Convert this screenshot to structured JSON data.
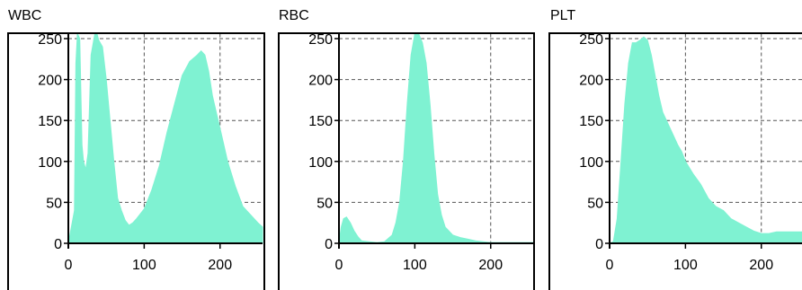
{
  "chart_data": [
    {
      "type": "area",
      "title": "WBC",
      "xlim": [
        0,
        256
      ],
      "ylim": [
        0,
        256
      ],
      "xticks": [
        "0",
        "100",
        "200"
      ],
      "yticks": [
        "0",
        "50",
        "100",
        "150",
        "200",
        "250"
      ],
      "grid": true,
      "fill_color": "#7ff2d2",
      "x": [
        0,
        8,
        10,
        12,
        15,
        18,
        20,
        23,
        26,
        30,
        35,
        38,
        40,
        45,
        50,
        55,
        60,
        65,
        70,
        75,
        80,
        85,
        90,
        100,
        110,
        120,
        130,
        140,
        150,
        160,
        165,
        170,
        175,
        180,
        185,
        190,
        200,
        210,
        220,
        230,
        240,
        250,
        256
      ],
      "y": [
        0,
        40,
        220,
        256,
        250,
        120,
        100,
        90,
        110,
        230,
        256,
        255,
        248,
        240,
        200,
        150,
        100,
        55,
        40,
        28,
        22,
        25,
        30,
        42,
        65,
        95,
        135,
        170,
        205,
        222,
        226,
        230,
        235,
        230,
        210,
        180,
        140,
        100,
        70,
        45,
        35,
        25,
        20
      ]
    },
    {
      "type": "area",
      "title": "RBC",
      "xlim": [
        0,
        256
      ],
      "ylim": [
        0,
        256
      ],
      "xticks": [
        "0",
        "100",
        "200"
      ],
      "yticks": [
        "0",
        "50",
        "100",
        "150",
        "200",
        "250"
      ],
      "grid": true,
      "fill_color": "#7ff2d2",
      "x": [
        0,
        3,
        6,
        10,
        15,
        20,
        25,
        30,
        40,
        50,
        60,
        70,
        75,
        80,
        85,
        90,
        95,
        100,
        105,
        110,
        115,
        120,
        125,
        130,
        135,
        140,
        150,
        160,
        170,
        180,
        190,
        200,
        220,
        240,
        256
      ],
      "y": [
        0,
        20,
        30,
        32,
        25,
        15,
        8,
        3,
        2,
        1,
        2,
        10,
        25,
        50,
        100,
        170,
        230,
        256,
        256,
        245,
        220,
        170,
        110,
        60,
        35,
        20,
        10,
        7,
        5,
        3,
        2,
        1,
        1,
        1,
        1
      ]
    },
    {
      "type": "area",
      "title": "PLT",
      "xlim": [
        0,
        256
      ],
      "ylim": [
        0,
        256
      ],
      "xticks": [
        "0",
        "100",
        "200"
      ],
      "yticks": [
        "0",
        "50",
        "100",
        "150",
        "200",
        "250"
      ],
      "grid": true,
      "fill_color": "#7ff2d2",
      "x": [
        0,
        5,
        10,
        15,
        20,
        25,
        30,
        35,
        40,
        45,
        50,
        55,
        60,
        65,
        70,
        75,
        80,
        85,
        90,
        95,
        100,
        110,
        120,
        130,
        140,
        150,
        160,
        170,
        180,
        190,
        200,
        210,
        220,
        230,
        240,
        250,
        256
      ],
      "y": [
        0,
        2,
        30,
        100,
        170,
        220,
        245,
        245,
        248,
        252,
        248,
        230,
        205,
        180,
        160,
        150,
        140,
        130,
        120,
        112,
        100,
        85,
        72,
        55,
        45,
        40,
        30,
        25,
        20,
        15,
        12,
        12,
        14,
        14,
        14,
        14,
        14
      ]
    }
  ]
}
